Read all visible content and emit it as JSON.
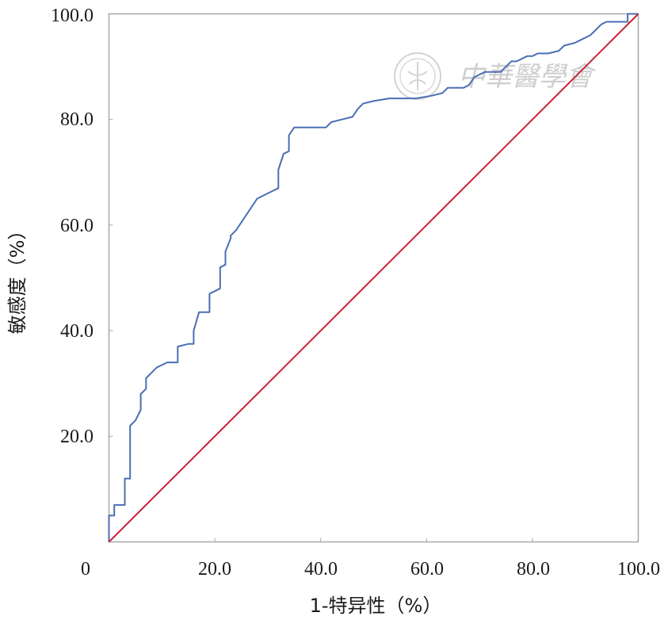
{
  "chart_data": {
    "type": "line",
    "xlabel": "1-特异性（%）",
    "ylabel": "敏感度（%）",
    "xlim": [
      0,
      100
    ],
    "ylim": [
      0,
      100
    ],
    "x_ticks": [
      "0",
      "20.0",
      "40.0",
      "60.0",
      "80.0",
      "100.0"
    ],
    "y_ticks": [
      "20.0",
      "40.0",
      "60.0",
      "80.0",
      "100.0"
    ],
    "grid": false,
    "legend": "none",
    "series": [
      {
        "color": "#4a6fb3",
        "x": [
          0,
          0,
          1,
          1,
          3,
          3,
          4,
          4,
          4,
          4,
          5,
          6,
          6,
          7,
          7,
          8,
          8,
          9,
          10,
          11,
          12,
          13,
          13,
          15,
          16,
          16,
          17,
          19,
          19,
          20,
          21,
          21,
          22,
          22,
          23,
          23,
          24,
          26,
          28,
          30,
          31,
          32,
          32,
          33,
          34,
          34,
          35,
          36,
          38,
          41,
          42,
          44,
          46,
          47,
          48,
          50,
          53,
          56,
          58,
          61,
          63,
          64,
          65,
          67,
          68,
          69,
          71,
          74,
          75,
          76,
          77,
          79,
          80,
          81,
          83,
          85,
          86,
          88,
          89,
          91,
          92,
          93,
          94,
          96,
          97,
          98,
          98,
          100
        ],
        "y": [
          0,
          5,
          5,
          7,
          7,
          12,
          12,
          13,
          21,
          22,
          23,
          25,
          28,
          29,
          31,
          32,
          32,
          33,
          33.5,
          34,
          34,
          34,
          37,
          37.5,
          37.5,
          40,
          43.5,
          43.5,
          47,
          47.5,
          48,
          52,
          52.5,
          55,
          57.5,
          58,
          59,
          62,
          65,
          66,
          66.5,
          67,
          70.5,
          73.5,
          74,
          77,
          78.5,
          78.5,
          78.5,
          78.5,
          79.5,
          80,
          80.5,
          82,
          83,
          83.5,
          84,
          84,
          84,
          84.5,
          85,
          86,
          86,
          86,
          86.5,
          88,
          89,
          89,
          90,
          91,
          91,
          92,
          92,
          92.5,
          92.5,
          93,
          94,
          94.5,
          95,
          96,
          97,
          98,
          98.5,
          98.5,
          98.5,
          98.5,
          100,
          100
        ]
      },
      {
        "color": "#c8203a",
        "x": [
          0,
          100
        ],
        "y": [
          0,
          100
        ]
      }
    ]
  },
  "watermark": {
    "text": "中華醫學會",
    "seal_text": "中華醫學會",
    "color": "#c9c9c9"
  }
}
